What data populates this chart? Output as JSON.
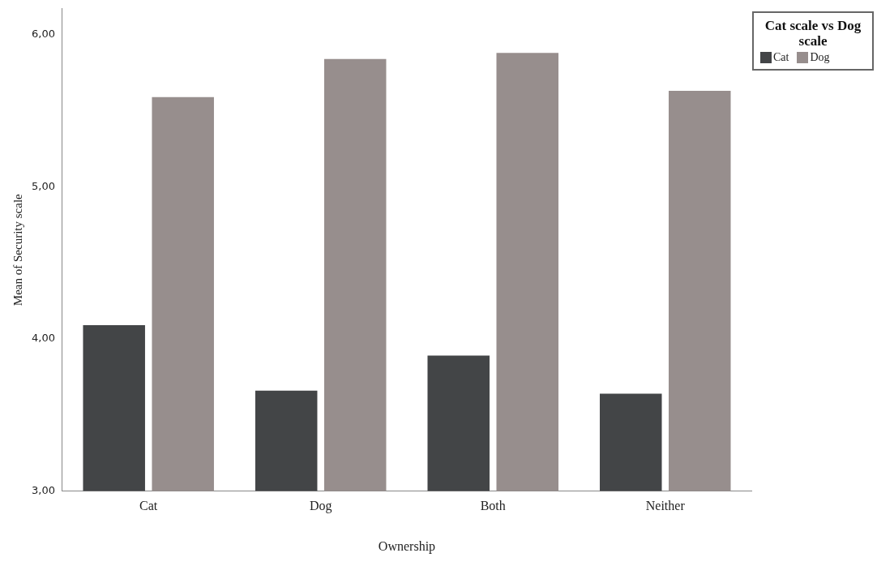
{
  "chart_data": {
    "type": "bar",
    "xlabel": "Ownership",
    "ylabel": "Mean of Security scale",
    "legend_title": "Cat scale vs Dog scale",
    "categories": [
      "Cat",
      "Dog",
      "Both",
      "Neither"
    ],
    "series": [
      {
        "name": "Cat",
        "color": "#434547",
        "values": [
          4.09,
          3.66,
          3.89,
          3.64
        ]
      },
      {
        "name": "Dog",
        "color": "#978e8d",
        "values": [
          5.59,
          5.84,
          5.88,
          5.63
        ]
      }
    ],
    "ylim": [
      3,
      6.17
    ],
    "yticks": [
      {
        "value": 3,
        "label": "3,00"
      },
      {
        "value": 4,
        "label": "4,00"
      },
      {
        "value": 5,
        "label": "5,00"
      },
      {
        "value": 6,
        "label": "6,00"
      }
    ],
    "grid": false,
    "legend": "top right"
  }
}
